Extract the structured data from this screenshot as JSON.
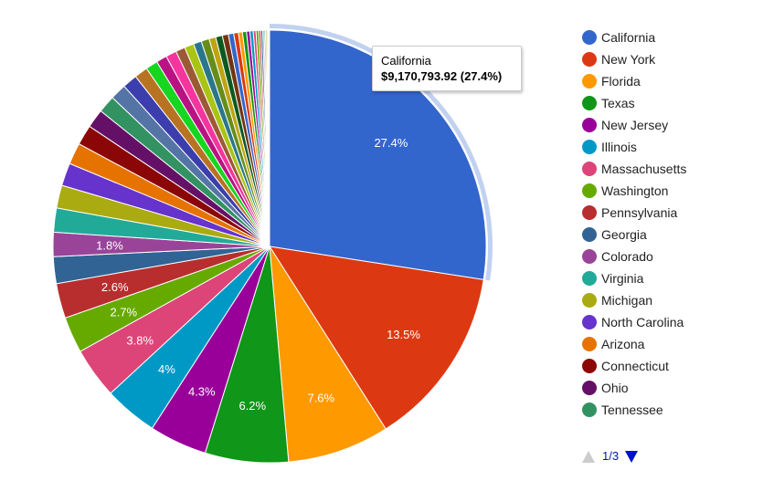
{
  "chart_data": {
    "type": "pie",
    "slices": [
      {
        "label": "California",
        "percent": 27.4,
        "color": "#3366cc",
        "display": "27.4%"
      },
      {
        "label": "New York",
        "percent": 13.5,
        "color": "#dc3912",
        "display": "13.5%"
      },
      {
        "label": "Florida",
        "percent": 7.6,
        "color": "#ff9900",
        "display": "7.6%"
      },
      {
        "label": "Texas",
        "percent": 6.2,
        "color": "#109618",
        "display": "6.2%"
      },
      {
        "label": "New Jersey",
        "percent": 4.3,
        "color": "#990099",
        "display": "4.3%"
      },
      {
        "label": "Illinois",
        "percent": 4.0,
        "color": "#0099c6",
        "display": "4%"
      },
      {
        "label": "Massachusetts",
        "percent": 3.8,
        "color": "#dd4477",
        "display": "3.8%"
      },
      {
        "label": "Washington",
        "percent": 2.7,
        "color": "#66aa00",
        "display": "2.7%"
      },
      {
        "label": "Pennsylvania",
        "percent": 2.6,
        "color": "#b82e2e",
        "display": "2.6%"
      },
      {
        "label": "Georgia",
        "percent": 2.0,
        "color": "#316395",
        "display": ""
      },
      {
        "label": "Colorado",
        "percent": 1.8,
        "color": "#994499",
        "display": "1.8%"
      },
      {
        "label": "Virginia",
        "percent": 1.8,
        "color": "#22aa99",
        "display": ""
      },
      {
        "label": "Michigan",
        "percent": 1.7,
        "color": "#aaaa11",
        "display": ""
      },
      {
        "label": "North Carolina",
        "percent": 1.7,
        "color": "#6633cc",
        "display": ""
      },
      {
        "label": "Arizona",
        "percent": 1.6,
        "color": "#e67300",
        "display": ""
      },
      {
        "label": "Connecticut",
        "percent": 1.5,
        "color": "#8b0707",
        "display": ""
      },
      {
        "label": "Ohio",
        "percent": 1.4,
        "color": "#651067",
        "display": ""
      },
      {
        "label": "Tennessee",
        "percent": 1.3,
        "color": "#329262",
        "display": ""
      },
      {
        "label": "",
        "percent": 1.2,
        "color": "#5574a6",
        "display": ""
      },
      {
        "label": "",
        "percent": 1.1,
        "color": "#3b3eac",
        "display": ""
      },
      {
        "label": "",
        "percent": 1.0,
        "color": "#b77322",
        "display": ""
      },
      {
        "label": "",
        "percent": 0.9,
        "color": "#16d620",
        "display": ""
      },
      {
        "label": "",
        "percent": 0.8,
        "color": "#b91383",
        "display": ""
      },
      {
        "label": "",
        "percent": 0.8,
        "color": "#f4359e",
        "display": ""
      },
      {
        "label": "",
        "percent": 0.7,
        "color": "#9c5935",
        "display": ""
      },
      {
        "label": "",
        "percent": 0.7,
        "color": "#a9c413",
        "display": ""
      },
      {
        "label": "",
        "percent": 0.6,
        "color": "#2a778d",
        "display": ""
      },
      {
        "label": "",
        "percent": 0.6,
        "color": "#668d1c",
        "display": ""
      },
      {
        "label": "",
        "percent": 0.5,
        "color": "#bea413",
        "display": ""
      },
      {
        "label": "",
        "percent": 0.5,
        "color": "#0c5922",
        "display": ""
      },
      {
        "label": "",
        "percent": 0.45,
        "color": "#743411",
        "display": ""
      },
      {
        "label": "",
        "percent": 0.4,
        "color": "#3366cc",
        "display": ""
      },
      {
        "label": "",
        "percent": 0.35,
        "color": "#dc3912",
        "display": ""
      },
      {
        "label": "",
        "percent": 0.3,
        "color": "#ff9900",
        "display": ""
      },
      {
        "label": "",
        "percent": 0.3,
        "color": "#109618",
        "display": ""
      },
      {
        "label": "",
        "percent": 0.25,
        "color": "#990099",
        "display": ""
      },
      {
        "label": "",
        "percent": 0.25,
        "color": "#0099c6",
        "display": ""
      },
      {
        "label": "",
        "percent": 0.2,
        "color": "#dd4477",
        "display": ""
      },
      {
        "label": "",
        "percent": 0.2,
        "color": "#66aa00",
        "display": ""
      },
      {
        "label": "",
        "percent": 0.15,
        "color": "#b82e2e",
        "display": ""
      },
      {
        "label": "",
        "percent": 0.15,
        "color": "#316395",
        "display": ""
      },
      {
        "label": "",
        "percent": 0.1,
        "color": "#994499",
        "display": ""
      },
      {
        "label": "",
        "percent": 0.1,
        "color": "#22aa99",
        "display": ""
      },
      {
        "label": "",
        "percent": 0.1,
        "color": "#aaaa11",
        "display": ""
      },
      {
        "label": "",
        "percent": 0.08,
        "color": "#6633cc",
        "display": ""
      },
      {
        "label": "",
        "percent": 0.07,
        "color": "#e67300",
        "display": ""
      },
      {
        "label": "",
        "percent": 0.05,
        "color": "#8b0707",
        "display": ""
      }
    ],
    "highlighted": "California",
    "legend_position": "right"
  },
  "tooltip": {
    "name": "California",
    "value": "$9,170,793.92 (27.4%)"
  },
  "legend": {
    "items": [
      {
        "label": "California",
        "color": "#3366cc"
      },
      {
        "label": "New York",
        "color": "#dc3912"
      },
      {
        "label": "Florida",
        "color": "#ff9900"
      },
      {
        "label": "Texas",
        "color": "#109618"
      },
      {
        "label": "New Jersey",
        "color": "#990099"
      },
      {
        "label": "Illinois",
        "color": "#0099c6"
      },
      {
        "label": "Massachusetts",
        "color": "#dd4477"
      },
      {
        "label": "Washington",
        "color": "#66aa00"
      },
      {
        "label": "Pennsylvania",
        "color": "#b82e2e"
      },
      {
        "label": "Georgia",
        "color": "#316395"
      },
      {
        "label": "Colorado",
        "color": "#994499"
      },
      {
        "label": "Virginia",
        "color": "#22aa99"
      },
      {
        "label": "Michigan",
        "color": "#aaaa11"
      },
      {
        "label": "North Carolina",
        "color": "#6633cc"
      },
      {
        "label": "Arizona",
        "color": "#e67300"
      },
      {
        "label": "Connecticut",
        "color": "#8b0707"
      },
      {
        "label": "Ohio",
        "color": "#651067"
      },
      {
        "label": "Tennessee",
        "color": "#329262"
      }
    ]
  },
  "pager": {
    "page_text": "1/3",
    "prev_icon": "triangle-up-icon",
    "next_icon": "triangle-down-icon",
    "prev_color": "#cccccc",
    "next_color": "#0011cc"
  }
}
